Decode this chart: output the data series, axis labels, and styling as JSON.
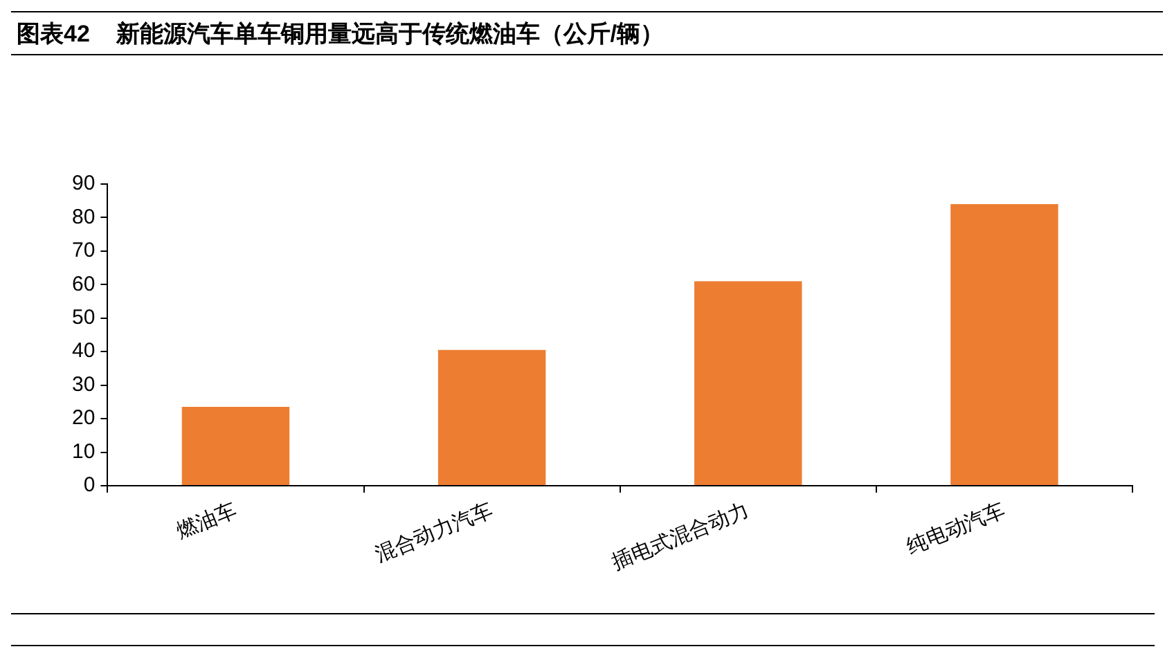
{
  "chart_data": {
    "type": "bar",
    "title": "图表42    新能源汽车单车铜用量远高于传统燃油车（公斤/辆）",
    "categories": [
      "燃油车",
      "混合动力汽车",
      "插电式混合动力",
      "纯电动汽车"
    ],
    "values": [
      23.5,
      40.5,
      61,
      84
    ],
    "color": "#ed7d31",
    "ylim": [
      0,
      90
    ],
    "yticks": [
      0,
      10,
      20,
      30,
      40,
      50,
      60,
      70,
      80,
      90
    ],
    "grid": false,
    "legend": false
  }
}
